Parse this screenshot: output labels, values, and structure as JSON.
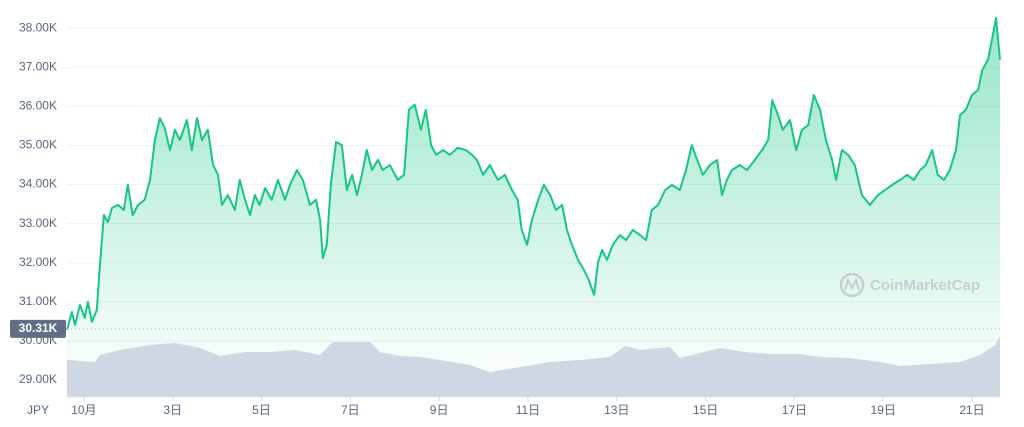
{
  "chart_data": {
    "type": "line",
    "currency_label": "JPY",
    "watermark": "CoinMarketCap",
    "color": "#16c784",
    "grid": true,
    "reference_line": {
      "value": 30310,
      "label": "30.31K"
    },
    "xlim": [
      0.62,
      21.63
    ],
    "ylim": [
      28600,
      38500
    ],
    "yticks": [
      {
        "value": 29000,
        "label": "29.00K"
      },
      {
        "value": 30000,
        "label": "30.00K"
      },
      {
        "value": 31000,
        "label": "31.00K"
      },
      {
        "value": 32000,
        "label": "32.00K"
      },
      {
        "value": 33000,
        "label": "33.00K"
      },
      {
        "value": 34000,
        "label": "34.00K"
      },
      {
        "value": 35000,
        "label": "35.00K"
      },
      {
        "value": 36000,
        "label": "36.00K"
      },
      {
        "value": 37000,
        "label": "37.00K"
      },
      {
        "value": 38000,
        "label": "38.00K"
      }
    ],
    "xticks": [
      {
        "value": 1,
        "label": "10月"
      },
      {
        "value": 3,
        "label": "3日"
      },
      {
        "value": 5,
        "label": "5日"
      },
      {
        "value": 7,
        "label": "7日"
      },
      {
        "value": 9,
        "label": "9日"
      },
      {
        "value": 11,
        "label": "11日"
      },
      {
        "value": 13,
        "label": "13日"
      },
      {
        "value": 15,
        "label": "15日"
      },
      {
        "value": 17,
        "label": "17日"
      },
      {
        "value": 19,
        "label": "19日"
      },
      {
        "value": 21,
        "label": "21日"
      }
    ],
    "x": [
      0.62,
      0.73,
      0.8,
      0.91,
      1.02,
      1.09,
      1.18,
      1.29,
      1.36,
      1.45,
      1.54,
      1.63,
      1.77,
      1.9,
      1.99,
      2.1,
      2.22,
      2.37,
      2.49,
      2.6,
      2.71,
      2.82,
      2.94,
      3.05,
      3.16,
      3.32,
      3.43,
      3.55,
      3.66,
      3.79,
      3.91,
      4.02,
      4.11,
      4.24,
      4.4,
      4.51,
      4.63,
      4.74,
      4.85,
      4.96,
      5.08,
      5.23,
      5.37,
      5.53,
      5.64,
      5.8,
      5.93,
      6.09,
      6.23,
      6.32,
      6.38,
      6.47,
      6.56,
      6.68,
      6.81,
      6.92,
      7.04,
      7.15,
      7.26,
      7.37,
      7.49,
      7.62,
      7.73,
      7.89,
      8.07,
      8.21,
      8.32,
      8.45,
      8.59,
      8.7,
      8.82,
      8.93,
      9.09,
      9.24,
      9.42,
      9.6,
      9.74,
      9.85,
      9.99,
      10.14,
      10.32,
      10.48,
      10.64,
      10.77,
      10.86,
      10.98,
      11.09,
      11.23,
      11.36,
      11.5,
      11.63,
      11.77,
      11.88,
      11.99,
      12.13,
      12.26,
      12.37,
      12.49,
      12.58,
      12.67,
      12.78,
      12.91,
      13.07,
      13.21,
      13.36,
      13.52,
      13.66,
      13.79,
      13.93,
      14.09,
      14.24,
      14.42,
      14.56,
      14.69,
      14.81,
      14.94,
      15.1,
      15.26,
      15.37,
      15.48,
      15.59,
      15.77,
      15.93,
      16.11,
      16.27,
      16.41,
      16.5,
      16.63,
      16.74,
      16.9,
      17.04,
      17.17,
      17.31,
      17.44,
      17.58,
      17.71,
      17.85,
      17.94,
      18.07,
      18.21,
      18.36,
      18.52,
      18.7,
      18.88,
      19.04,
      19.2,
      19.38,
      19.54,
      19.69,
      19.83,
      19.96,
      20.1,
      20.23,
      20.37,
      20.5,
      20.64,
      20.73,
      20.86,
      21.0,
      21.14,
      21.23,
      21.36,
      21.47,
      21.54,
      21.63
    ],
    "values": [
      30280,
      30740,
      30410,
      30920,
      30590,
      31000,
      30490,
      30790,
      31940,
      33220,
      33040,
      33400,
      33480,
      33350,
      33990,
      33220,
      33480,
      33610,
      34120,
      35140,
      35700,
      35450,
      34880,
      35400,
      35140,
      35650,
      34880,
      35700,
      35140,
      35400,
      34500,
      34250,
      33480,
      33730,
      33350,
      34120,
      33610,
      33220,
      33730,
      33480,
      33910,
      33610,
      34120,
      33610,
      33990,
      34370,
      34120,
      33480,
      33610,
      33090,
      32120,
      32460,
      33990,
      35090,
      35010,
      33860,
      34250,
      33730,
      34250,
      34880,
      34370,
      34630,
      34370,
      34500,
      34120,
      34250,
      35910,
      36040,
      35400,
      35910,
      35010,
      34760,
      34880,
      34760,
      34940,
      34880,
      34760,
      34630,
      34250,
      34500,
      34120,
      34250,
      33860,
      33610,
      32840,
      32460,
      33090,
      33610,
      33990,
      33730,
      33350,
      33480,
      32840,
      32460,
      32070,
      31820,
      31560,
      31180,
      32020,
      32330,
      32070,
      32460,
      32710,
      32580,
      32840,
      32710,
      32580,
      33350,
      33480,
      33860,
      33990,
      33860,
      34370,
      35010,
      34630,
      34250,
      34500,
      34630,
      33730,
      34120,
      34370,
      34500,
      34370,
      34630,
      34880,
      35140,
      36160,
      35780,
      35400,
      35650,
      34880,
      35400,
      35520,
      36290,
      35910,
      35140,
      34630,
      34120,
      34880,
      34760,
      34500,
      33730,
      33480,
      33730,
      33860,
      33990,
      34120,
      34250,
      34120,
      34370,
      34500,
      34880,
      34250,
      34120,
      34370,
      34880,
      35780,
      35910,
      36290,
      36420,
      36930,
      37190,
      37830,
      38260,
      37190
    ]
  }
}
